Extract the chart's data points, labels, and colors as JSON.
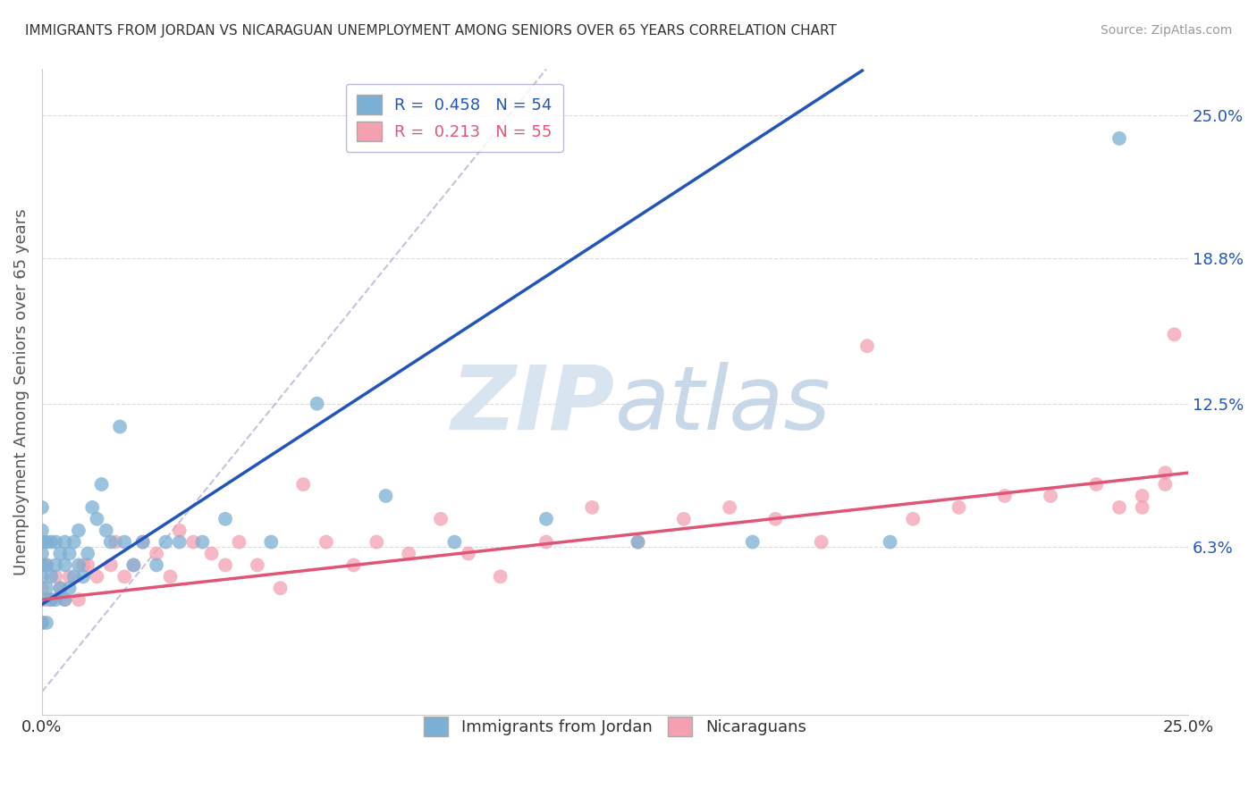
{
  "title": "IMMIGRANTS FROM JORDAN VS NICARAGUAN UNEMPLOYMENT AMONG SENIORS OVER 65 YEARS CORRELATION CHART",
  "source": "Source: ZipAtlas.com",
  "ylabel": "Unemployment Among Seniors over 65 years",
  "xlim": [
    0.0,
    0.25
  ],
  "ylim": [
    -0.01,
    0.27
  ],
  "xtick_labels": [
    "0.0%",
    "25.0%"
  ],
  "xtick_vals": [
    0.0,
    0.25
  ],
  "ytick_right_labels": [
    "25.0%",
    "18.8%",
    "12.5%",
    "6.3%"
  ],
  "ytick_right_vals": [
    0.25,
    0.188,
    0.125,
    0.063
  ],
  "blue_color": "#7BAFD4",
  "pink_color": "#F4A0B0",
  "blue_line_color": "#2255BB",
  "pink_line_color": "#E05575",
  "blue_R": 0.458,
  "blue_N": 54,
  "pink_R": 0.213,
  "pink_N": 55,
  "blue_scatter_x": [
    0.0,
    0.0,
    0.0,
    0.0,
    0.0,
    0.0,
    0.0,
    0.0,
    0.001,
    0.001,
    0.001,
    0.001,
    0.002,
    0.002,
    0.002,
    0.003,
    0.003,
    0.003,
    0.004,
    0.004,
    0.005,
    0.005,
    0.005,
    0.006,
    0.006,
    0.007,
    0.007,
    0.008,
    0.008,
    0.009,
    0.01,
    0.011,
    0.012,
    0.013,
    0.014,
    0.015,
    0.017,
    0.018,
    0.02,
    0.022,
    0.025,
    0.027,
    0.03,
    0.035,
    0.04,
    0.05,
    0.06,
    0.075,
    0.09,
    0.11,
    0.13,
    0.155,
    0.185,
    0.235
  ],
  "blue_scatter_y": [
    0.03,
    0.04,
    0.05,
    0.055,
    0.06,
    0.065,
    0.07,
    0.08,
    0.03,
    0.045,
    0.055,
    0.065,
    0.04,
    0.05,
    0.065,
    0.04,
    0.055,
    0.065,
    0.045,
    0.06,
    0.04,
    0.055,
    0.065,
    0.045,
    0.06,
    0.05,
    0.065,
    0.055,
    0.07,
    0.05,
    0.06,
    0.08,
    0.075,
    0.09,
    0.07,
    0.065,
    0.115,
    0.065,
    0.055,
    0.065,
    0.055,
    0.065,
    0.065,
    0.065,
    0.075,
    0.065,
    0.125,
    0.085,
    0.065,
    0.075,
    0.065,
    0.065,
    0.065,
    0.24
  ],
  "pink_scatter_x": [
    0.0,
    0.0,
    0.0,
    0.001,
    0.001,
    0.002,
    0.003,
    0.004,
    0.005,
    0.006,
    0.008,
    0.009,
    0.01,
    0.012,
    0.015,
    0.016,
    0.018,
    0.02,
    0.022,
    0.025,
    0.028,
    0.03,
    0.033,
    0.037,
    0.04,
    0.043,
    0.047,
    0.052,
    0.057,
    0.062,
    0.068,
    0.073,
    0.08,
    0.087,
    0.093,
    0.1,
    0.11,
    0.12,
    0.13,
    0.14,
    0.15,
    0.16,
    0.17,
    0.18,
    0.19,
    0.2,
    0.21,
    0.22,
    0.23,
    0.235,
    0.24,
    0.24,
    0.245,
    0.245,
    0.247
  ],
  "pink_scatter_y": [
    0.03,
    0.045,
    0.055,
    0.04,
    0.055,
    0.04,
    0.05,
    0.045,
    0.04,
    0.05,
    0.04,
    0.055,
    0.055,
    0.05,
    0.055,
    0.065,
    0.05,
    0.055,
    0.065,
    0.06,
    0.05,
    0.07,
    0.065,
    0.06,
    0.055,
    0.065,
    0.055,
    0.045,
    0.09,
    0.065,
    0.055,
    0.065,
    0.06,
    0.075,
    0.06,
    0.05,
    0.065,
    0.08,
    0.065,
    0.075,
    0.08,
    0.075,
    0.065,
    0.15,
    0.075,
    0.08,
    0.085,
    0.085,
    0.09,
    0.08,
    0.08,
    0.085,
    0.09,
    0.095,
    0.155
  ],
  "watermark_color": "#D8E4F0",
  "background_color": "#FFFFFF",
  "grid_color": "#CCCCCC"
}
